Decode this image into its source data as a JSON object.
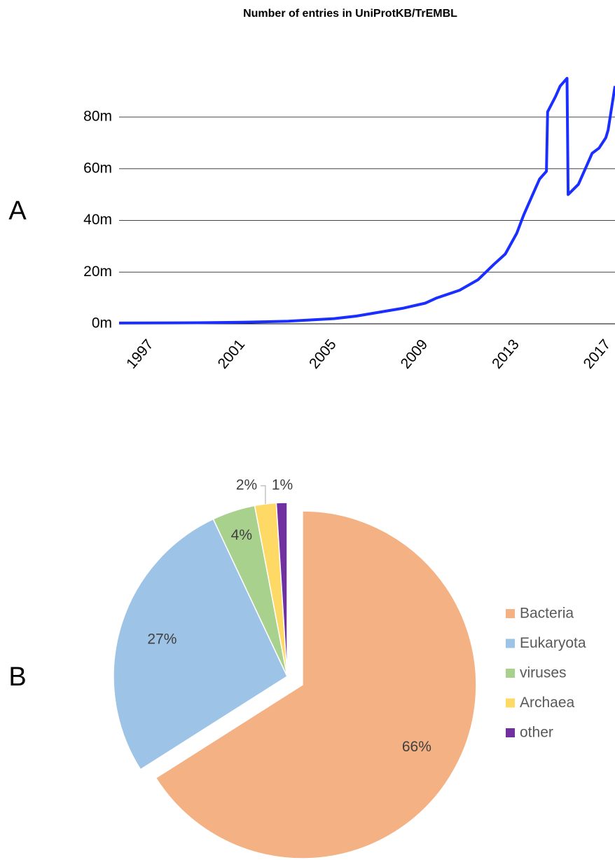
{
  "chart_data": [
    {
      "type": "line",
      "panel": "A",
      "title": "Number of entries in UniProtKB/TrEMBL",
      "x": [
        1995.6,
        1999,
        2001,
        2003,
        2005,
        2006,
        2007,
        2008,
        2009,
        2009.5,
        2010.5,
        2011.3,
        2012,
        2012.5,
        2013,
        2013.3,
        2013.7,
        2014,
        2014.3,
        2014.35,
        2014.7,
        2014.9,
        2015.2,
        2015.25,
        2015.7,
        2016,
        2016.3,
        2016.6,
        2016.9,
        2017,
        2017.3
      ],
      "values": [
        300000,
        400000,
        600000,
        1000000,
        2000000,
        3000000,
        4500000,
        6000000,
        8000000,
        10000000,
        13000000,
        17000000,
        23000000,
        27000000,
        35000000,
        42000000,
        50000000,
        56000000,
        59000000,
        82000000,
        88000000,
        92000000,
        95000000,
        50000000,
        54000000,
        60000000,
        66000000,
        68000000,
        72000000,
        75000000,
        92000000
      ],
      "color": "#1a2fff",
      "xlim": [
        1995.6,
        2017.3
      ],
      "xticks": [
        1997,
        2001,
        2005,
        2009,
        2013,
        2017
      ],
      "ylim": [
        0,
        96000000
      ],
      "yticks": [
        {
          "value": 0,
          "label": "0m"
        },
        {
          "value": 20000000,
          "label": "20m"
        },
        {
          "value": 40000000,
          "label": "40m"
        },
        {
          "value": 60000000,
          "label": "60m"
        },
        {
          "value": 80000000,
          "label": "80m"
        }
      ],
      "grid": true
    },
    {
      "type": "pie",
      "panel": "B",
      "categories": [
        "Bacteria",
        "Eukaryota",
        "viruses",
        "Archaea",
        "other"
      ],
      "values": [
        66,
        27,
        4,
        2,
        1
      ],
      "value_labels": [
        "66%",
        "27%",
        "4%",
        "2%",
        "1%"
      ],
      "colors": [
        "#f4b183",
        "#9dc3e6",
        "#a9d18e",
        "#ffd966",
        "#7030a0"
      ],
      "explode": "Bacteria",
      "legend": "right"
    }
  ]
}
